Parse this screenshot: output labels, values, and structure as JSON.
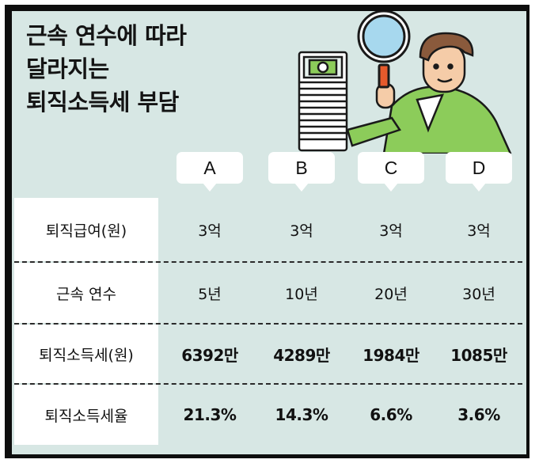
{
  "title": {
    "line1": "근속 연수에 따라",
    "line2": "달라지는",
    "line3": "퇴직소득세 부담"
  },
  "columns": [
    "A",
    "B",
    "C",
    "D"
  ],
  "rows": [
    {
      "label": "퇴직급여(원)",
      "values": [
        "3억",
        "3억",
        "3억",
        "3억"
      ],
      "bold": false
    },
    {
      "label": "근속 연수",
      "values": [
        "5년",
        "10년",
        "20년",
        "30년"
      ],
      "bold": false
    },
    {
      "label": "퇴직소득세(원)",
      "values": [
        "6392만",
        "4289만",
        "1984만",
        "1085만"
      ],
      "bold": true
    },
    {
      "label": "퇴직소득세율",
      "values": [
        "21.3%",
        "14.3%",
        "6.6%",
        "3.6%"
      ],
      "bold": true
    }
  ],
  "colors": {
    "background": "#d7e7e4",
    "frame": "#0e0e0e",
    "label_cell": "#ffffff",
    "person_shirt": "#8ccc5a",
    "magnifier_glass": "#a7d8ee"
  },
  "illustration": {
    "depicts": "person-with-magnifying-glass-inspecting-stack-of-money"
  }
}
